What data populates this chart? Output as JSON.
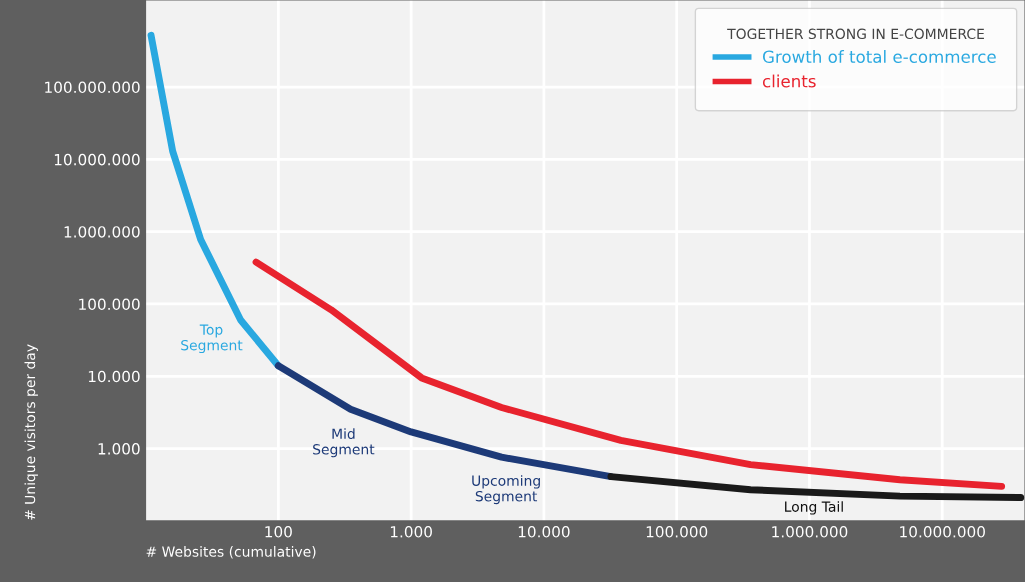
{
  "chart_data": {
    "type": "line",
    "log": "xy",
    "xlabel": "# Websites (cumulative)",
    "ylabel": "# Unique visitors per day",
    "legend_title": "TOGETHER STRONG IN E-COMMERCE",
    "legend": "top right",
    "grid": true,
    "line_style": "solid",
    "marker": "none",
    "xlim": [
      10,
      42000000
    ],
    "ylim": [
      100,
      1600000000
    ],
    "xticks": [
      {
        "value": 100,
        "label": "100"
      },
      {
        "value": 1000,
        "label": "1.000"
      },
      {
        "value": 10000,
        "label": "10.000"
      },
      {
        "value": 100000,
        "label": "100.000"
      },
      {
        "value": 1000000,
        "label": "1.000.000"
      },
      {
        "value": 10000000,
        "label": "10.000.000"
      }
    ],
    "yticks": [
      {
        "value": 1000,
        "label": "1.000"
      },
      {
        "value": 10000,
        "label": "10.000"
      },
      {
        "value": 100000,
        "label": "100.000"
      },
      {
        "value": 1000000,
        "label": "1.000.000"
      },
      {
        "value": 10000000,
        "label": "10.000.000"
      },
      {
        "value": 100000000,
        "label": "100.000.000"
      }
    ],
    "series": [
      {
        "name": "Growth of total e-commerce",
        "color": "#29a8e0",
        "x": [
          11,
          16,
          26,
          52,
          100
        ],
        "values": [
          520000000,
          13000000,
          780000,
          60000,
          14000
        ]
      },
      {
        "color": "#1d3a78",
        "x": [
          100,
          350,
          1000,
          4800,
          32000
        ],
        "values": [
          14000,
          3500,
          1700,
          760,
          410
        ]
      },
      {
        "color": "#1a1a1a",
        "x": [
          32000,
          360000,
          4800000,
          39000000
        ],
        "values": [
          410,
          270,
          220,
          210
        ]
      },
      {
        "name": "clients",
        "color": "#e8232e",
        "x": [
          68,
          250,
          1200,
          4800,
          38000,
          360000,
          4800000,
          28000000
        ],
        "values": [
          380000,
          83000,
          9500,
          3700,
          1300,
          600,
          370,
          300
        ]
      }
    ],
    "annotations": [
      "Top\nSegment",
      "Mid\nSegment",
      "Upcoming\nSegment",
      "Long Tail"
    ]
  }
}
